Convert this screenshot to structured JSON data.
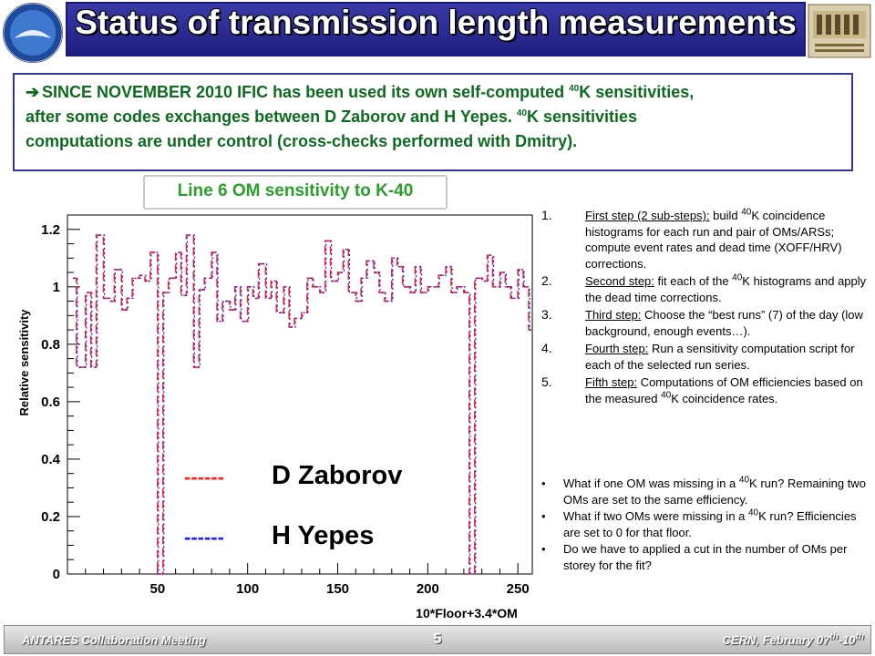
{
  "title": "Status of transmission length measurements",
  "intro": {
    "line1_a": "SINCE NOVEMBER 2010 IFIC has been used its own self-computed ",
    "sup_40": "40",
    "line1_b": "K sensitivities,",
    "line2_a": "after some codes exchanges between D Zaborov and H Yepes.  ",
    "line2_b": "K sensitivities",
    "line3": "computations are under control (cross-checks performed with Dmitry)."
  },
  "chart_data": {
    "type": "line",
    "title": "Line 6 OM sensitivity to K-40",
    "xlabel": "10*Floor+3.4*OM",
    "ylabel": "Relative sensitivity",
    "xlim": [
      0,
      258
    ],
    "ylim": [
      0,
      1.25
    ],
    "xticks": [
      "50",
      "100",
      "150",
      "200",
      "250"
    ],
    "xtick_values": [
      50,
      100,
      150,
      200,
      250
    ],
    "yticks": [
      "0",
      "0.2",
      "0.4",
      "0.6",
      "0.8",
      "1",
      "1.2"
    ],
    "ytick_values": [
      0,
      0.2,
      0.4,
      0.6,
      0.8,
      1.0,
      1.2
    ],
    "grid": false,
    "legend": [
      {
        "name": "D Zaborov",
        "marker": "------",
        "color": "#ff2020"
      },
      {
        "name": "H Yepes",
        "marker": "------",
        "color": "#2020ff"
      }
    ],
    "series": [
      {
        "name": "D Zaborov",
        "color": "#ff2020"
      },
      {
        "name": "H Yepes",
        "color": "#2020ff"
      }
    ],
    "x": [
      3,
      5,
      10,
      13,
      16,
      20,
      23,
      26,
      30,
      33,
      36,
      40,
      43,
      46,
      50,
      53,
      56,
      60,
      63,
      66,
      70,
      73,
      76,
      80,
      83,
      86,
      90,
      93,
      96,
      100,
      103,
      106,
      110,
      113,
      116,
      120,
      123,
      126,
      130,
      133,
      136,
      140,
      143,
      146,
      150,
      153,
      156,
      160,
      163,
      166,
      170,
      173,
      176,
      180,
      183,
      186,
      190,
      193,
      196,
      200,
      203,
      206,
      210,
      213,
      216,
      220,
      223,
      226,
      230,
      233,
      236,
      240,
      243,
      246,
      250,
      253,
      256
    ],
    "values": [
      1.03,
      0.72,
      0.98,
      0.72,
      1.18,
      0.96,
      0.95,
      1.06,
      0.92,
      0.96,
      1.03,
      1.04,
      1.02,
      1.12,
      0,
      0.98,
      1.03,
      1.12,
      0.97,
      1.18,
      0.72,
      0.99,
      1.03,
      1.12,
      0.88,
      0.95,
      0.92,
      1.0,
      0.88,
      1.0,
      0.96,
      1.08,
      0.96,
      1.02,
      0.91,
      1.0,
      0.86,
      0.89,
      0.91,
      1.03,
      1.0,
      0.98,
      1.16,
      1.02,
      1.05,
      1.13,
      0.98,
      0.95,
      1.03,
      1.09,
      1.05,
      0.98,
      0.95,
      1.1,
      1.07,
      1.0,
      0.98,
      1.07,
      0.98,
      1.0,
      1.0,
      1.04,
      1.07,
      0.98,
      1.0,
      0.98,
      0,
      1.03,
      1.02,
      1.11,
      1.0,
      1.05,
      1.0,
      0.96,
      1.06,
      1.0,
      0.85
    ]
  },
  "steps": [
    {
      "num": "1.",
      "head": "First step (2 sub-steps):",
      "body_a": " build ",
      "sup": "40",
      "body_b": "K coincidence histograms for each run and pair of OMs/ARSs; compute event rates and dead time (XOFF/HRV) corrections."
    },
    {
      "num": "2.",
      "head": "Second step:",
      "body_a": " fit each of the ",
      "sup": "40",
      "body_b": "K histograms and apply the dead time corrections."
    },
    {
      "num": "3.",
      "head": "Third step:",
      "body_a": " Choose the “best runs” (7) of the day (low background, enough events…).",
      "sup": "",
      "body_b": ""
    },
    {
      "num": "4.",
      "head": "Fourth step:",
      "body_a": " Run a sensitivity computation script for each of the selected run series.",
      "sup": "",
      "body_b": ""
    },
    {
      "num": "5.",
      "head": "Fifth step:",
      "body_a": " Computations of OM efficiencies based on the measured ",
      "sup": "40",
      "body_b": "K coincidence rates."
    }
  ],
  "bullets": [
    {
      "a": "What if one OM was missing in a ",
      "sup": "40",
      "b": "K run? Remaining two OMs are set to the same efficiency."
    },
    {
      "a": "What if two OMs were missing in a ",
      "sup": "40",
      "b": "K run? Efficiencies are set to 0 for that floor."
    },
    {
      "a": "Do we have to applied a  cut in the number of OMs per storey for the fit?",
      "sup": "",
      "b": ""
    }
  ],
  "footer": {
    "left": "ANTARES Collaboration Meeting",
    "page": "5",
    "right_a": "CERN, February 07",
    "right_sup1": "th",
    "right_b": "-10",
    "right_sup2": "th"
  }
}
